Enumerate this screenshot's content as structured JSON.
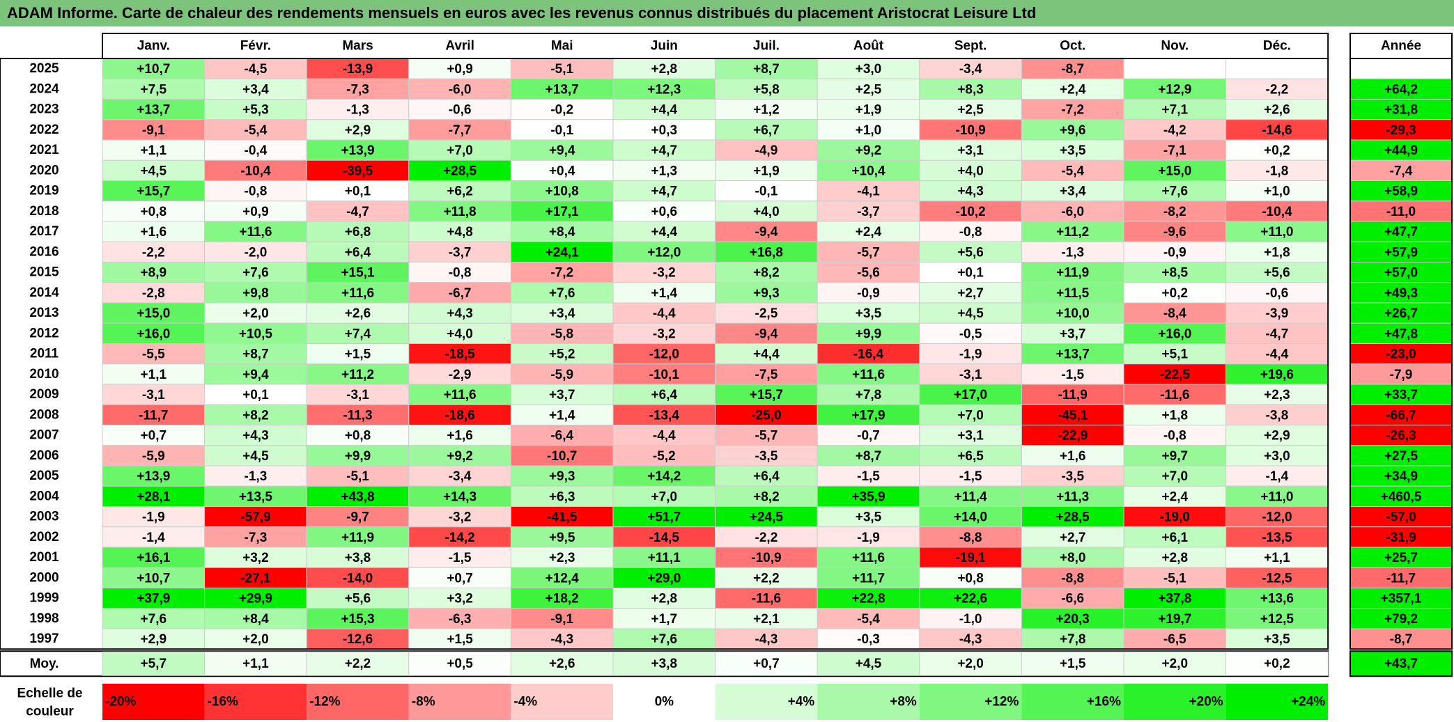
{
  "title": "ADAM Informe. Carte de chaleur des rendements mensuels en euros avec les revenus connus distribués du placement Aristocrat Leisure Ltd",
  "chart_data": {
    "type": "heatmap",
    "months": [
      "Janv.",
      "Févr.",
      "Mars",
      "Avril",
      "Mai",
      "Juin",
      "Juil.",
      "Août",
      "Sept.",
      "Oct.",
      "Nov.",
      "Déc."
    ],
    "year_header": "Année",
    "rows": [
      {
        "year": "2025",
        "values": [
          "+10,7",
          "-4,5",
          "-13,9",
          "+0,9",
          "-5,1",
          "+2,8",
          "+8,7",
          "+3,0",
          "-3,4",
          "-8,7",
          "",
          ""
        ],
        "annual": ""
      },
      {
        "year": "2024",
        "values": [
          "+7,5",
          "+3,4",
          "-7,3",
          "-6,0",
          "+13,7",
          "+12,3",
          "+5,8",
          "+2,5",
          "+8,3",
          "+2,4",
          "+12,9",
          "-2,2"
        ],
        "annual": "+64,2"
      },
      {
        "year": "2023",
        "values": [
          "+13,7",
          "+5,3",
          "-1,3",
          "-0,6",
          "-0,2",
          "+4,4",
          "+1,2",
          "+1,9",
          "+2,5",
          "-7,2",
          "+7,1",
          "+2,6"
        ],
        "annual": "+31,8"
      },
      {
        "year": "2022",
        "values": [
          "-9,1",
          "-5,4",
          "+2,9",
          "-7,7",
          "-0,1",
          "+0,3",
          "+6,7",
          "+1,0",
          "-10,9",
          "+9,6",
          "-4,2",
          "-14,6"
        ],
        "annual": "-29,3"
      },
      {
        "year": "2021",
        "values": [
          "+1,1",
          "-0,4",
          "+13,9",
          "+7,0",
          "+9,4",
          "+4,7",
          "-4,9",
          "+9,2",
          "+3,1",
          "+3,5",
          "-7,1",
          "+0,2"
        ],
        "annual": "+44,9"
      },
      {
        "year": "2020",
        "values": [
          "+4,5",
          "-10,4",
          "-39,5",
          "+28,5",
          "+0,4",
          "+1,3",
          "+1,9",
          "+10,4",
          "+4,0",
          "-5,4",
          "+15,0",
          "-1,8"
        ],
        "annual": "-7,4"
      },
      {
        "year": "2019",
        "values": [
          "+15,7",
          "-0,8",
          "+0,1",
          "+6,2",
          "+10,8",
          "+4,7",
          "-0,1",
          "-4,1",
          "+4,3",
          "+3,4",
          "+7,6",
          "+1,0"
        ],
        "annual": "+58,9"
      },
      {
        "year": "2018",
        "values": [
          "+0,8",
          "+0,9",
          "-4,7",
          "+11,8",
          "+17,1",
          "+0,6",
          "+4,0",
          "-3,7",
          "-10,2",
          "-6,0",
          "-8,2",
          "-10,4"
        ],
        "annual": "-11,0"
      },
      {
        "year": "2017",
        "values": [
          "+1,6",
          "+11,6",
          "+6,8",
          "+4,8",
          "+8,4",
          "+4,4",
          "-9,4",
          "+2,4",
          "-0,8",
          "+11,2",
          "-9,6",
          "+11,0"
        ],
        "annual": "+47,7"
      },
      {
        "year": "2016",
        "values": [
          "-2,2",
          "-2,0",
          "+6,4",
          "-3,7",
          "+24,1",
          "+12,0",
          "+16,8",
          "-5,7",
          "+5,6",
          "-1,3",
          "-0,9",
          "+1,8"
        ],
        "annual": "+57,9"
      },
      {
        "year": "2015",
        "values": [
          "+8,9",
          "+7,6",
          "+15,1",
          "-0,8",
          "-7,2",
          "-3,2",
          "+8,2",
          "-5,6",
          "+0,1",
          "+11,9",
          "+8,5",
          "+5,6"
        ],
        "annual": "+57,0"
      },
      {
        "year": "2014",
        "values": [
          "-2,8",
          "+9,8",
          "+11,6",
          "-6,7",
          "+7,6",
          "+1,4",
          "+9,3",
          "-0,9",
          "+2,7",
          "+11,5",
          "+0,2",
          "-0,6"
        ],
        "annual": "+49,3"
      },
      {
        "year": "2013",
        "values": [
          "+15,0",
          "+2,0",
          "+2,6",
          "+4,3",
          "+3,4",
          "-4,4",
          "-2,5",
          "+3,5",
          "+4,5",
          "+10,0",
          "-8,4",
          "-3,9"
        ],
        "annual": "+26,7"
      },
      {
        "year": "2012",
        "values": [
          "+16,0",
          "+10,5",
          "+7,4",
          "+4,0",
          "-5,8",
          "-3,2",
          "-9,4",
          "+9,9",
          "-0,5",
          "+3,7",
          "+16,0",
          "-4,7"
        ],
        "annual": "+47,8"
      },
      {
        "year": "2011",
        "values": [
          "-5,5",
          "+8,7",
          "+1,5",
          "-18,5",
          "+5,2",
          "-12,0",
          "+4,4",
          "-16,4",
          "-1,9",
          "+13,7",
          "+5,1",
          "-4,4"
        ],
        "annual": "-23,0"
      },
      {
        "year": "2010",
        "values": [
          "+1,1",
          "+9,4",
          "+11,2",
          "-2,9",
          "-5,9",
          "-10,1",
          "-7,5",
          "+11,6",
          "-3,1",
          "-1,5",
          "-22,5",
          "+19,6"
        ],
        "annual": "-7,9"
      },
      {
        "year": "2009",
        "values": [
          "-3,1",
          "+0,1",
          "-3,1",
          "+11,6",
          "+3,7",
          "+6,4",
          "+15,7",
          "+7,8",
          "+17,0",
          "-11,9",
          "-11,6",
          "+2,3"
        ],
        "annual": "+33,7"
      },
      {
        "year": "2008",
        "values": [
          "-11,7",
          "+8,2",
          "-11,3",
          "-18,6",
          "+1,4",
          "-13,4",
          "-25,0",
          "+17,9",
          "+7,0",
          "-45,1",
          "+1,8",
          "-3,8"
        ],
        "annual": "-66,7"
      },
      {
        "year": "2007",
        "values": [
          "+0,7",
          "+4,3",
          "+0,8",
          "+1,6",
          "-6,4",
          "-4,4",
          "-5,7",
          "-0,7",
          "+3,1",
          "-22,9",
          "-0,8",
          "+2,9"
        ],
        "annual": "-26,3"
      },
      {
        "year": "2006",
        "values": [
          "-5,9",
          "+4,5",
          "+9,9",
          "+9,2",
          "-10,7",
          "-5,2",
          "-3,5",
          "+8,7",
          "+6,5",
          "+1,6",
          "+9,7",
          "+3,0"
        ],
        "annual": "+27,5"
      },
      {
        "year": "2005",
        "values": [
          "+13,9",
          "-1,3",
          "-5,1",
          "-3,4",
          "+9,3",
          "+14,2",
          "+6,4",
          "-1,5",
          "-1,5",
          "-3,5",
          "+7,0",
          "-1,4"
        ],
        "annual": "+34,9"
      },
      {
        "year": "2004",
        "values": [
          "+28,1",
          "+13,5",
          "+43,8",
          "+14,3",
          "+6,3",
          "+7,0",
          "+8,2",
          "+35,9",
          "+11,4",
          "+11,3",
          "+2,4",
          "+11,0"
        ],
        "annual": "+460,5"
      },
      {
        "year": "2003",
        "values": [
          "-1,9",
          "-57,9",
          "-9,7",
          "-3,2",
          "-41,5",
          "+51,7",
          "+24,5",
          "+3,5",
          "+14,0",
          "+28,5",
          "-19,0",
          "-12,0"
        ],
        "annual": "-57,0"
      },
      {
        "year": "2002",
        "values": [
          "-1,4",
          "-7,3",
          "+11,9",
          "-14,2",
          "+9,5",
          "-14,5",
          "-2,2",
          "-1,9",
          "-8,8",
          "+2,7",
          "+6,1",
          "-13,5"
        ],
        "annual": "-31,9"
      },
      {
        "year": "2001",
        "values": [
          "+16,1",
          "+3,2",
          "+3,8",
          "-1,5",
          "+2,3",
          "+11,1",
          "-10,9",
          "+11,6",
          "-19,1",
          "+8,0",
          "+2,8",
          "+1,1"
        ],
        "annual": "+25,7"
      },
      {
        "year": "2000",
        "values": [
          "+10,7",
          "-27,1",
          "-14,0",
          "+0,7",
          "+12,4",
          "+29,0",
          "+2,2",
          "+11,7",
          "+0,8",
          "-8,8",
          "-5,1",
          "-12,5"
        ],
        "annual": "-11,7"
      },
      {
        "year": "1999",
        "values": [
          "+37,9",
          "+29,9",
          "+5,6",
          "+3,2",
          "+18,2",
          "+2,8",
          "-11,6",
          "+22,8",
          "+22,6",
          "-6,6",
          "+37,8",
          "+13,6"
        ],
        "annual": "+357,1"
      },
      {
        "year": "1998",
        "values": [
          "+7,6",
          "+8,4",
          "+15,3",
          "-6,3",
          "-9,1",
          "+1,7",
          "+2,1",
          "-5,4",
          "-1,0",
          "+20,3",
          "+19,7",
          "+12,5"
        ],
        "annual": "+79,2"
      },
      {
        "year": "1997",
        "values": [
          "+2,9",
          "+2,0",
          "-12,6",
          "+1,5",
          "-4,3",
          "+7,6",
          "-4,3",
          "-0,3",
          "-4,3",
          "+7,8",
          "-6,5",
          "+3,5"
        ],
        "annual": "-8,7"
      }
    ],
    "average": {
      "label": "Moy.",
      "values": [
        "+5,7",
        "+1,1",
        "+2,2",
        "+0,5",
        "+2,6",
        "+3,8",
        "+0,7",
        "+4,5",
        "+2,0",
        "+1,5",
        "+2,0",
        "+0,2"
      ],
      "annual": "+43,7"
    },
    "scale": {
      "label_line1": "Echelle de",
      "label_line2": "couleur",
      "steps": [
        "-20%",
        "-16%",
        "-12%",
        "-8%",
        "-4%",
        "0%",
        "+4%",
        "+8%",
        "+12%",
        "+16%",
        "+20%",
        "+24%"
      ],
      "step_values": [
        -20,
        -16,
        -12,
        -8,
        -4,
        0,
        4,
        8,
        12,
        16,
        20,
        24
      ]
    },
    "colors": {
      "negative_max": "#ff0000",
      "neutral": "#ffffff",
      "positive_max": "#00ee00",
      "title_bar": "#7cc47c"
    }
  }
}
